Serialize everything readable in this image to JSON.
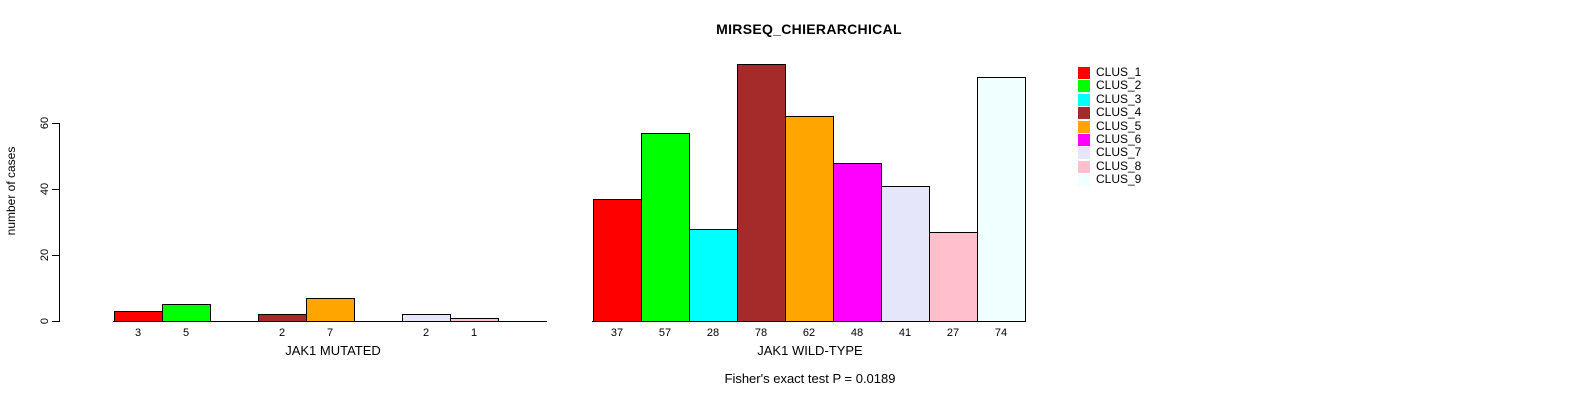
{
  "title": "MIRSEQ_CHIERARCHICAL",
  "footnote": "Fisher's exact test P = 0.0189",
  "y_axis": {
    "label": "number of cases",
    "ticks": [
      0,
      20,
      40,
      60
    ]
  },
  "legend": {
    "items": [
      {
        "label": "CLUS_1",
        "color": "#FF0000"
      },
      {
        "label": "CLUS_2",
        "color": "#00FF00"
      },
      {
        "label": "CLUS_3",
        "color": "#00FFFF"
      },
      {
        "label": "CLUS_4",
        "color": "#A52A2A"
      },
      {
        "label": "CLUS_5",
        "color": "#FFA500"
      },
      {
        "label": "CLUS_6",
        "color": "#FF00FF"
      },
      {
        "label": "CLUS_7",
        "color": "#E6E6FA"
      },
      {
        "label": "CLUS_8",
        "color": "#FFC0CB"
      },
      {
        "label": "CLUS_9",
        "color": "#F0FFFF"
      }
    ]
  },
  "chart_data": [
    {
      "type": "bar",
      "title": "MIRSEQ_CHIERARCHICAL",
      "xlabel": "JAK1 MUTATED",
      "ylabel": "number of cases",
      "categories": [
        "CLUS_1",
        "CLUS_2",
        "CLUS_3",
        "CLUS_4",
        "CLUS_5",
        "CLUS_6",
        "CLUS_7",
        "CLUS_8",
        "CLUS_9"
      ],
      "values": [
        3,
        5,
        0,
        2,
        7,
        0,
        2,
        1,
        0
      ],
      "colors": [
        "#FF0000",
        "#00FF00",
        "#00FFFF",
        "#A52A2A",
        "#FFA500",
        "#FF00FF",
        "#E6E6FA",
        "#FFC0CB",
        "#F0FFFF"
      ],
      "bar_value_labels": [
        "3",
        "5",
        "",
        "2",
        "7",
        "",
        "2",
        "1",
        ""
      ],
      "ylim": [
        0,
        80
      ],
      "grid": false,
      "legend_position": "right"
    },
    {
      "type": "bar",
      "title": "MIRSEQ_CHIERARCHICAL",
      "xlabel": "JAK1 WILD-TYPE",
      "ylabel": "number of cases",
      "categories": [
        "CLUS_1",
        "CLUS_2",
        "CLUS_3",
        "CLUS_4",
        "CLUS_5",
        "CLUS_6",
        "CLUS_7",
        "CLUS_8",
        "CLUS_9"
      ],
      "values": [
        37,
        57,
        28,
        78,
        62,
        48,
        41,
        27,
        74
      ],
      "colors": [
        "#FF0000",
        "#00FF00",
        "#00FFFF",
        "#A52A2A",
        "#FFA500",
        "#FF00FF",
        "#E6E6FA",
        "#FFC0CB",
        "#F0FFFF"
      ],
      "bar_value_labels": [
        "37",
        "57",
        "28",
        "78",
        "62",
        "48",
        "41",
        "27",
        "74"
      ],
      "ylim": [
        0,
        80
      ],
      "grid": false,
      "legend_position": "right"
    }
  ]
}
